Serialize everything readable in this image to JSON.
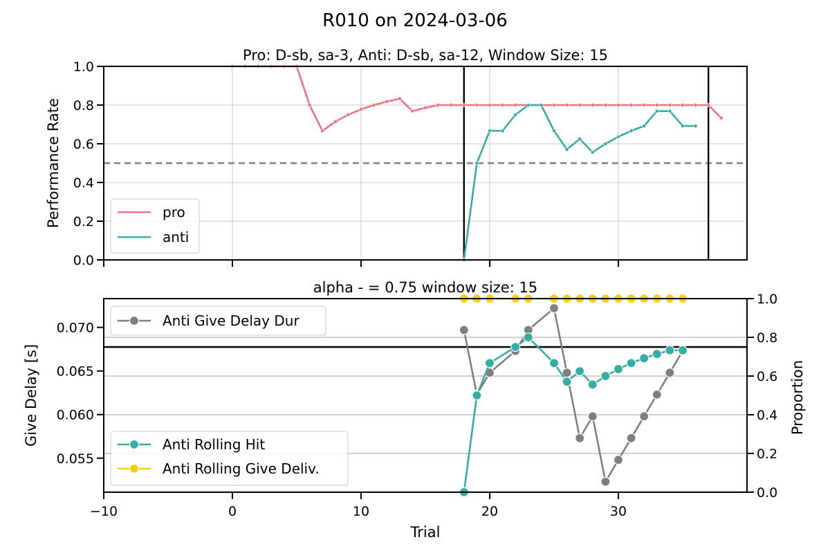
{
  "chart_data": [
    {
      "type": "line",
      "suptitle": "R010 on 2024-03-06",
      "title": "Pro: D-sb, sa-3, Anti: D-sb, sa-12, Window Size: 15",
      "xlabel": "",
      "ylabel": "Performance Rate",
      "xlim": [
        -10,
        40
      ],
      "ylim": [
        0,
        1
      ],
      "yticks": [
        "0.0",
        "0.2",
        "0.4",
        "0.6",
        "0.8",
        "1.0"
      ],
      "xticks": [
        -10,
        0,
        10,
        20,
        30
      ],
      "reference_line": 0.5,
      "block_boundaries": [
        18,
        37
      ],
      "legend": {
        "position": "lower-left",
        "entries": [
          "pro",
          "anti"
        ]
      },
      "series": [
        {
          "name": "pro",
          "color": "#f07181",
          "x": [
            0,
            1,
            2,
            3,
            4,
            5,
            6,
            7,
            8,
            9,
            10,
            11,
            12,
            13,
            14,
            15,
            16,
            17,
            18,
            19,
            20,
            21,
            22,
            23,
            24,
            25,
            26,
            27,
            28,
            29,
            30,
            31,
            32,
            33,
            34,
            35,
            36,
            37,
            38
          ],
          "y": [
            1,
            1,
            1,
            1,
            1,
            1,
            0.8,
            0.667,
            0.714,
            0.75,
            0.778,
            0.8,
            0.818,
            0.833,
            0.769,
            0.786,
            0.8,
            0.8,
            0.8,
            0.8,
            0.8,
            0.8,
            0.8,
            0.8,
            0.8,
            0.8,
            0.8,
            0.8,
            0.8,
            0.8,
            0.8,
            0.8,
            0.8,
            0.8,
            0.8,
            0.8,
            0.8,
            0.8,
            0.733
          ]
        },
        {
          "name": "anti",
          "color": "#36ada4",
          "x": [
            18,
            19,
            20,
            21,
            22,
            23,
            24,
            25,
            26,
            27,
            28,
            29,
            30,
            31,
            32,
            33,
            34,
            35,
            36
          ],
          "y": [
            0,
            0.5,
            0.667,
            0.667,
            0.75,
            0.8,
            0.8,
            0.667,
            0.571,
            0.625,
            0.556,
            0.6,
            0.636,
            0.667,
            0.692,
            0.769,
            0.769,
            0.692,
            0.692
          ]
        }
      ]
    },
    {
      "type": "line",
      "title": "alpha - = 0.75 window size: 15",
      "xlabel": "Trial",
      "ylabel": "Give Delay [s]",
      "ylabel_right": "Proportion",
      "xlim": [
        -10,
        40
      ],
      "xticks": [
        "−10",
        "0",
        "10",
        "20",
        "30"
      ],
      "ylim_left": [
        0.0511,
        0.0733
      ],
      "yticks_left": [
        "0.055",
        "0.060",
        "0.065",
        "0.070"
      ],
      "ylim_right": [
        0,
        1
      ],
      "yticks_right": [
        "0.0",
        "0.2",
        "0.4",
        "0.6",
        "0.8",
        "1.0"
      ],
      "reference_line_right": 0.75,
      "legend_upper": {
        "position": "upper-left",
        "entries": [
          "Anti Give Delay Dur"
        ]
      },
      "legend_lower": {
        "position": "lower-left",
        "entries": [
          "Anti Rolling Hit",
          "Anti Rolling Give Deliv."
        ]
      },
      "series": [
        {
          "name": "Anti Give Delay Dur",
          "axis": "left",
          "color": "#7f7f7f",
          "x": [
            18,
            19,
            20,
            22,
            23,
            25,
            26,
            27,
            28,
            29,
            30,
            31,
            32,
            33,
            34,
            35
          ],
          "y": [
            0.0697,
            0.0623,
            0.0648,
            0.0673,
            0.0697,
            0.0722,
            0.0648,
            0.0573,
            0.0598,
            0.0523,
            0.0548,
            0.0573,
            0.0598,
            0.0623,
            0.0648,
            0.0673
          ]
        },
        {
          "name": "Anti Rolling Hit",
          "axis": "right",
          "color": "#36ada4",
          "x": [
            18,
            19,
            20,
            22,
            23,
            25,
            26,
            27,
            28,
            29,
            30,
            31,
            32,
            33,
            34,
            35
          ],
          "y": [
            0,
            0.5,
            0.667,
            0.75,
            0.8,
            0.667,
            0.571,
            0.625,
            0.556,
            0.6,
            0.636,
            0.667,
            0.692,
            0.714,
            0.733,
            0.733
          ]
        },
        {
          "name": "Anti Rolling Give Deliv.",
          "axis": "right",
          "color": "#f5d10a",
          "x": [
            18,
            19,
            20,
            22,
            23,
            25,
            26,
            27,
            28,
            29,
            30,
            31,
            32,
            33,
            34,
            35
          ],
          "y": [
            1,
            1,
            1,
            1,
            1,
            1,
            1,
            1,
            1,
            1,
            1,
            1,
            1,
            1,
            1,
            1
          ]
        }
      ]
    }
  ]
}
